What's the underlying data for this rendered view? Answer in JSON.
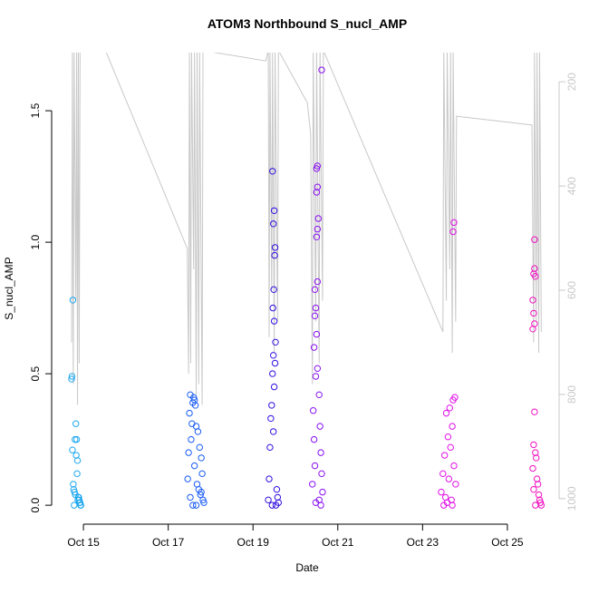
{
  "chart_data": {
    "type": "scatter",
    "title": "ATOM3 Northbound S_nucl_AMP",
    "x_label": "Date",
    "y_label": "S_nucl_AMP",
    "xlim": [
      14.25,
      26.22
    ],
    "xticks": [
      {
        "value": 15,
        "label": "Oct 15"
      },
      {
        "value": 17,
        "label": "Oct 17"
      },
      {
        "value": 19,
        "label": "Oct 19"
      },
      {
        "value": 21,
        "label": "Oct 21"
      },
      {
        "value": 23,
        "label": "Oct 23"
      },
      {
        "value": 25,
        "label": "Oct 25"
      }
    ],
    "ylim": [
      -0.072,
      1.721
    ],
    "yticks": [
      {
        "value": 0,
        "label": "0.0"
      },
      0.5,
      {
        "value": 1,
        "label": "1.0"
      },
      1.5
    ],
    "y2lim": [
      1049,
      144
    ],
    "y2ticks": [
      200,
      400,
      600,
      800,
      1000
    ],
    "series": [
      {
        "color": "#1fa8f0",
        "x": [
          14.72,
          14.73,
          14.75,
          14.74,
          14.82,
          14.8,
          14.84,
          14.86,
          14.83,
          14.85,
          14.76,
          14.77,
          14.79,
          14.81,
          14.88,
          14.9,
          14.92,
          14.93,
          14.78,
          14.87,
          14.89,
          14.91,
          14.94
        ],
        "values": [
          0.48,
          0.49,
          0.78,
          0.21,
          0.31,
          0.25,
          0.25,
          0.17,
          0.19,
          0.12,
          0.08,
          0.06,
          0.05,
          0.04,
          0.03,
          0.02,
          0.01,
          0.0,
          0.0,
          0.02,
          0.03,
          0.01,
          0.0
        ]
      },
      {
        "color": "#1a5cf5",
        "x": [
          17.52,
          17.6,
          17.62,
          17.58,
          17.64,
          17.5,
          17.56,
          17.66,
          17.7,
          17.54,
          17.74,
          17.48,
          17.78,
          17.62,
          17.8,
          17.46,
          17.68,
          17.72,
          17.76,
          17.82,
          17.84,
          17.58,
          17.66,
          17.52,
          17.78
        ],
        "values": [
          0.42,
          0.41,
          0.4,
          0.39,
          0.38,
          0.35,
          0.31,
          0.3,
          0.28,
          0.25,
          0.22,
          0.2,
          0.18,
          0.15,
          0.12,
          0.1,
          0.08,
          0.06,
          0.04,
          0.02,
          0.01,
          0.0,
          0.0,
          0.03,
          0.05
        ]
      },
      {
        "color": "#3010e0",
        "x": [
          19.46,
          19.5,
          19.48,
          19.52,
          19.51,
          19.49,
          19.47,
          19.5,
          19.53,
          19.48,
          19.52,
          19.46,
          19.5,
          19.44,
          19.42,
          19.48,
          19.4,
          19.38,
          19.56,
          19.58,
          19.36,
          19.6,
          19.45,
          19.54
        ],
        "values": [
          1.27,
          1.12,
          1.07,
          0.98,
          0.95,
          0.82,
          0.75,
          0.7,
          0.62,
          0.57,
          0.54,
          0.5,
          0.45,
          0.38,
          0.33,
          0.28,
          0.22,
          0.1,
          0.06,
          0.03,
          0.02,
          0.01,
          0.0,
          0.0
        ]
      },
      {
        "color": "#8a10f0",
        "x": [
          20.62,
          20.52,
          20.5,
          20.52,
          20.5,
          20.54,
          20.52,
          20.5,
          20.52,
          20.46,
          20.48,
          20.46,
          20.5,
          20.44,
          20.52,
          20.48,
          20.56,
          20.42,
          20.58,
          20.44,
          20.6,
          20.46,
          20.62,
          20.4,
          20.64,
          20.56,
          20.48,
          20.6
        ],
        "values": [
          1.655,
          1.29,
          1.28,
          1.21,
          1.19,
          1.09,
          1.05,
          1.02,
          0.85,
          0.82,
          0.75,
          0.72,
          0.65,
          0.6,
          0.52,
          0.49,
          0.42,
          0.36,
          0.3,
          0.25,
          0.2,
          0.15,
          0.12,
          0.08,
          0.05,
          0.02,
          0.01,
          0.0
        ]
      },
      {
        "color": "#e010e8",
        "x": [
          23.74,
          23.72,
          23.76,
          23.72,
          23.64,
          23.56,
          23.7,
          23.6,
          23.66,
          23.52,
          23.74,
          23.48,
          23.62,
          23.78,
          23.44,
          23.54,
          23.68,
          23.58,
          23.5,
          23.7
        ],
        "values": [
          1.075,
          1.04,
          0.41,
          0.4,
          0.37,
          0.35,
          0.3,
          0.26,
          0.22,
          0.19,
          0.15,
          0.12,
          0.1,
          0.08,
          0.05,
          0.03,
          0.02,
          0.01,
          0.0,
          0.0
        ]
      },
      {
        "color": "#f010c0",
        "x": [
          25.64,
          25.64,
          25.62,
          25.66,
          25.6,
          25.62,
          25.64,
          25.6,
          25.64,
          25.62,
          25.66,
          25.68,
          25.6,
          25.7,
          25.72,
          25.62,
          25.74,
          25.76,
          25.78,
          25.66,
          25.8
        ],
        "values": [
          1.01,
          0.9,
          0.88,
          0.87,
          0.78,
          0.73,
          0.69,
          0.67,
          0.355,
          0.23,
          0.2,
          0.18,
          0.14,
          0.1,
          0.08,
          0.06,
          0.04,
          0.02,
          0.01,
          0.0,
          0.0
        ]
      },
      {
        "type": "line",
        "axis": "y2",
        "color": "#c8c8c8",
        "x": [
          14.72,
          14.74,
          14.76,
          14.78,
          14.82,
          14.84,
          14.86,
          14.88,
          14.9,
          14.92,
          15.52,
          17.45,
          17.48,
          17.5,
          17.53,
          17.55,
          17.6,
          17.62,
          17.66,
          17.68,
          17.72,
          17.74,
          17.8,
          17.82,
          19.3,
          19.36,
          19.38,
          19.4,
          19.44,
          19.46,
          19.5,
          19.52,
          19.58,
          19.6,
          20.28,
          20.36,
          20.4,
          20.42,
          20.48,
          20.5,
          20.56,
          20.58,
          20.64,
          20.66,
          23.48,
          23.5,
          23.56,
          23.58,
          23.64,
          23.66,
          23.7,
          23.72,
          23.78,
          23.8,
          25.58,
          25.62,
          25.64,
          25.68,
          25.7,
          25.74,
          25.76,
          25.8
        ],
        "values": [
          700,
          140,
          780,
          140,
          620,
          140,
          820,
          140,
          740,
          140,
          140,
          520,
          760,
          140,
          740,
          140,
          560,
          140,
          800,
          140,
          780,
          140,
          820,
          140,
          160,
          140,
          690,
          140,
          600,
          140,
          720,
          140,
          660,
          140,
          240,
          300,
          780,
          140,
          660,
          140,
          740,
          140,
          620,
          140,
          680,
          140,
          620,
          140,
          560,
          140,
          720,
          140,
          660,
          266,
          283,
          700,
          140,
          660,
          140,
          720,
          140,
          680
        ]
      }
    ]
  }
}
